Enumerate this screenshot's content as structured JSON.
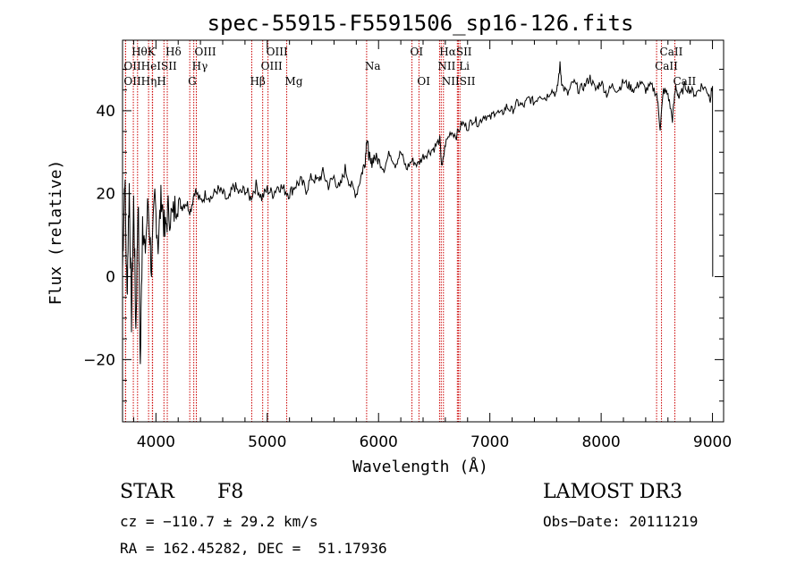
{
  "chart_data": {
    "type": "line",
    "title": "spec-55915-F5591506_sp16-126.fits",
    "xlabel": "Wavelength (Å)",
    "ylabel": "Flux (relative)",
    "xlim": [
      3700,
      9100
    ],
    "ylim": [
      -35,
      57
    ],
    "xticks": [
      4000,
      5000,
      6000,
      7000,
      8000,
      9000
    ],
    "xtick_labels": [
      "4000",
      "5000",
      "6000",
      "7000",
      "8000",
      "9000"
    ],
    "yticks": [
      -20,
      0,
      20,
      40
    ],
    "ytick_labels": [
      "−20",
      "0",
      "20",
      "40"
    ],
    "series": [
      {
        "name": "flux",
        "x": [
          3700,
          3720,
          3740,
          3760,
          3780,
          3800,
          3820,
          3840,
          3860,
          3880,
          3900,
          3930,
          3960,
          3990,
          4020,
          4050,
          4080,
          4110,
          4150,
          4190,
          4230,
          4270,
          4310,
          4350,
          4400,
          4450,
          4500,
          4550,
          4600,
          4650,
          4700,
          4750,
          4800,
          4850,
          4900,
          4950,
          5000,
          5050,
          5100,
          5150,
          5200,
          5250,
          5300,
          5350,
          5400,
          5450,
          5500,
          5550,
          5600,
          5650,
          5700,
          5750,
          5800,
          5850,
          5880,
          5895,
          5910,
          5930,
          5960,
          6000,
          6050,
          6100,
          6150,
          6200,
          6250,
          6300,
          6350,
          6400,
          6450,
          6500,
          6550,
          6570,
          6600,
          6650,
          6700,
          6750,
          6800,
          6850,
          6900,
          6950,
          7000,
          7050,
          7100,
          7150,
          7200,
          7250,
          7300,
          7350,
          7400,
          7450,
          7500,
          7550,
          7600,
          7630,
          7650,
          7700,
          7750,
          7800,
          7850,
          7900,
          7950,
          8000,
          8050,
          8100,
          8150,
          8200,
          8250,
          8300,
          8350,
          8400,
          8450,
          8500,
          8530,
          8560,
          8600,
          8640,
          8670,
          8700,
          8750,
          8800,
          8850,
          8900,
          8950,
          8980,
          9000,
          9002
        ],
        "values": [
          2,
          25,
          -5,
          22,
          -10,
          18,
          -13,
          20,
          -22,
          15,
          5,
          18,
          2,
          19,
          8,
          20,
          10,
          16,
          14,
          19,
          17,
          18,
          16,
          21,
          18,
          20,
          19,
          21,
          20,
          18,
          22,
          20,
          21,
          19,
          22,
          19,
          21,
          20,
          22,
          21,
          20,
          22,
          23,
          21,
          24,
          23,
          25,
          22,
          24,
          21,
          26,
          22,
          20,
          25,
          28,
          34,
          30,
          27,
          29,
          28,
          26,
          30,
          27,
          30,
          26,
          28,
          27,
          29,
          30,
          31,
          33,
          26,
          32,
          35,
          34,
          37,
          36,
          38,
          37,
          39,
          38,
          40,
          39,
          41,
          40,
          42,
          41,
          43,
          42,
          44,
          43,
          45,
          44,
          51,
          46,
          44,
          47,
          45,
          46,
          48,
          45,
          47,
          44,
          46,
          45,
          47,
          46,
          45,
          47,
          45,
          46,
          44,
          36,
          45,
          44,
          38,
          46,
          43,
          46,
          45,
          44,
          46,
          45,
          43,
          46,
          0
        ]
      }
    ],
    "lines": [
      {
        "name": "Hθ",
        "x": 3797
      },
      {
        "name": "OII",
        "x": 3727
      },
      {
        "name": "OII",
        "x": 3727
      },
      {
        "name": "K",
        "x": 3934
      },
      {
        "name": "Hε",
        "x": 3970
      },
      {
        "name": "Hη",
        "x": 3835
      },
      {
        "name": "H",
        "x": 3968
      },
      {
        "name": "Hδ",
        "x": 4102
      },
      {
        "name": "SII",
        "x": 4072
      },
      {
        "name": "OIII",
        "x": 4363
      },
      {
        "name": "Hγ",
        "x": 4340
      },
      {
        "name": "G",
        "x": 4304
      },
      {
        "name": "OIII",
        "x": 5007
      },
      {
        "name": "OIII",
        "x": 4959
      },
      {
        "name": "Hβ",
        "x": 4861
      },
      {
        "name": "Mg",
        "x": 5175
      },
      {
        "name": "Na",
        "x": 5893
      },
      {
        "name": "OI",
        "x": 6300
      },
      {
        "name": "OI",
        "x": 6363
      },
      {
        "name": "Hα",
        "x": 6563
      },
      {
        "name": "NII",
        "x": 6548
      },
      {
        "name": "NII",
        "x": 6583
      },
      {
        "name": "SII",
        "x": 6717
      },
      {
        "name": "Li",
        "x": 6708
      },
      {
        "name": "SII",
        "x": 6731
      },
      {
        "name": "CaII",
        "x": 8542
      },
      {
        "name": "CaII",
        "x": 8498
      },
      {
        "name": "CaII",
        "x": 8662
      }
    ],
    "line_labels": [
      {
        "text": "HθK",
        "x": 3797,
        "row": 1
      },
      {
        "text": "Hδ",
        "x": 4102,
        "row": 1
      },
      {
        "text": "OIII",
        "x": 4363,
        "row": 1
      },
      {
        "text": "OIII",
        "x": 5007,
        "row": 1
      },
      {
        "text": "OI",
        "x": 6300,
        "row": 1
      },
      {
        "text": "HαSII",
        "x": 6563,
        "row": 1
      },
      {
        "text": "CaII",
        "x": 8542,
        "row": 1
      },
      {
        "text": "OIIHeISII",
        "x": 3727,
        "row": 2
      },
      {
        "text": "Hγ",
        "x": 4340,
        "row": 2
      },
      {
        "text": "OIII",
        "x": 4959,
        "row": 2
      },
      {
        "text": "Na",
        "x": 5893,
        "row": 2
      },
      {
        "text": "NII Li",
        "x": 6548,
        "row": 2
      },
      {
        "text": "CaII",
        "x": 8498,
        "row": 2
      },
      {
        "text": "OIIHηH",
        "x": 3727,
        "row": 3
      },
      {
        "text": "G",
        "x": 4304,
        "row": 3
      },
      {
        "text": "Hβ",
        "x": 4861,
        "row": 3
      },
      {
        "text": "Mg",
        "x": 5175,
        "row": 3
      },
      {
        "text": "OI",
        "x": 6363,
        "row": 3
      },
      {
        "text": "NIISII",
        "x": 6583,
        "row": 3
      },
      {
        "text": "CaII",
        "x": 8662,
        "row": 3
      }
    ],
    "colors": {
      "flux": "#000000",
      "lines": "#cc0000",
      "axis": "#000000"
    }
  },
  "info": {
    "object_class": "STAR",
    "subclass": "F8",
    "survey": "LAMOST DR3",
    "cz": "cz = −110.7 ± 29.2 km/s",
    "obs_date": "Obs−Date: 20111219",
    "coords": "RA = 162.45282, DEC =  51.17936"
  }
}
